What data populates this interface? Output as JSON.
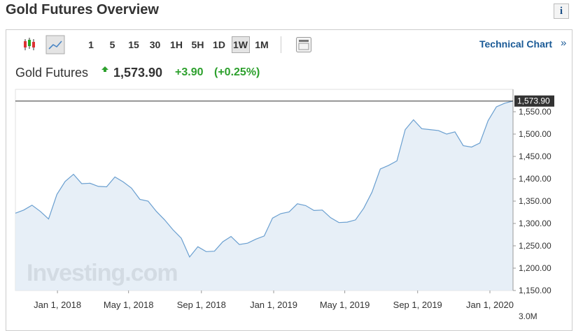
{
  "header": {
    "title": "Gold Futures Overview",
    "info_icon": "i"
  },
  "toolbar": {
    "intervals": [
      "1",
      "5",
      "15",
      "30",
      "1H",
      "5H",
      "1D",
      "1W",
      "1M"
    ],
    "selected_interval": "1W",
    "link": "Technical Chart",
    "link_arrow": "»"
  },
  "quote": {
    "name": "Gold Futures",
    "price": "1,573.90",
    "change": "+3.90",
    "change_pct": "(+0.25%)"
  },
  "chart_data": {
    "type": "area",
    "color": "#6a9fd0",
    "fill": "#e3ecf6",
    "watermark": "Investing.com",
    "volume_label": "3.0M",
    "current_label": {
      "value": 1573.9,
      "label": "1,573.90"
    },
    "x": [
      "2017-10-22",
      "2017-11-05",
      "2017-11-19",
      "2017-12-03",
      "2017-12-17",
      "2017-12-31",
      "2018-01-14",
      "2018-01-28",
      "2018-02-11",
      "2018-02-25",
      "2018-03-11",
      "2018-03-25",
      "2018-04-08",
      "2018-04-22",
      "2018-05-06",
      "2018-05-20",
      "2018-06-03",
      "2018-06-17",
      "2018-07-01",
      "2018-07-15",
      "2018-07-29",
      "2018-08-12",
      "2018-08-26",
      "2018-09-09",
      "2018-09-23",
      "2018-10-07",
      "2018-10-21",
      "2018-11-04",
      "2018-11-18",
      "2018-12-02",
      "2018-12-16",
      "2018-12-30",
      "2019-01-13",
      "2019-01-27",
      "2019-02-10",
      "2019-02-24",
      "2019-03-10",
      "2019-03-24",
      "2019-04-07",
      "2019-04-21",
      "2019-05-05",
      "2019-05-19",
      "2019-06-02",
      "2019-06-16",
      "2019-06-30",
      "2019-07-14",
      "2019-07-28",
      "2019-08-11",
      "2019-08-25",
      "2019-09-08",
      "2019-09-22",
      "2019-10-06",
      "2019-10-20",
      "2019-11-03",
      "2019-11-17",
      "2019-12-01",
      "2019-12-15",
      "2019-12-29",
      "2020-01-12",
      "2020-01-26",
      "2020-02-09"
    ],
    "values": [
      1323,
      1330,
      1341,
      1327,
      1310,
      1365,
      1394,
      1410,
      1389,
      1390,
      1383,
      1382,
      1404,
      1393,
      1379,
      1354,
      1350,
      1327,
      1308,
      1286,
      1267,
      1225,
      1248,
      1237,
      1238,
      1259,
      1271,
      1253,
      1256,
      1265,
      1272,
      1312,
      1322,
      1326,
      1344,
      1340,
      1329,
      1330,
      1313,
      1302,
      1303,
      1308,
      1334,
      1370,
      1422,
      1430,
      1440,
      1510,
      1532,
      1512,
      1510,
      1508,
      1500,
      1505,
      1474,
      1471,
      1480,
      1530,
      1561,
      1569,
      1573.9
    ],
    "xlim": [
      "2017-10-22",
      "2020-02-09"
    ],
    "xticks": [
      {
        "value": "2018-01-01",
        "label": "Jan 1, 2018"
      },
      {
        "value": "2018-05-01",
        "label": "May 1, 2018"
      },
      {
        "value": "2018-09-01",
        "label": "Sep 1, 2018"
      },
      {
        "value": "2019-01-01",
        "label": "Jan 1, 2019"
      },
      {
        "value": "2019-05-01",
        "label": "May 1, 2019"
      },
      {
        "value": "2019-09-01",
        "label": "Sep 1, 2019"
      },
      {
        "value": "2020-01-01",
        "label": "Jan 1, 2020"
      }
    ],
    "ylim": [
      1150,
      1600
    ],
    "yticks": [
      {
        "value": 1150,
        "label": "1,150.00"
      },
      {
        "value": 1200,
        "label": "1,200.00"
      },
      {
        "value": 1250,
        "label": "1,250.00"
      },
      {
        "value": 1300,
        "label": "1,300.00"
      },
      {
        "value": 1350,
        "label": "1,350.00"
      },
      {
        "value": 1400,
        "label": "1,400.00"
      },
      {
        "value": 1450,
        "label": "1,450.00"
      },
      {
        "value": 1500,
        "label": "1,500.00"
      },
      {
        "value": 1550,
        "label": "1,550.00"
      }
    ]
  }
}
